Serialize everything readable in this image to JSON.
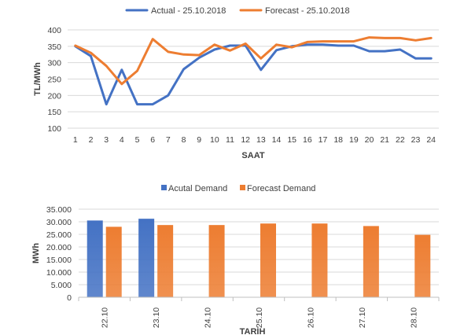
{
  "chart_data": [
    {
      "type": "line",
      "xlabel": "SAAT",
      "ylabel": "TL/MWh",
      "ylim": [
        100,
        400
      ],
      "yticks": [
        100,
        150,
        200,
        250,
        300,
        350,
        400
      ],
      "grid": true,
      "legend_position": "top",
      "x": [
        1,
        2,
        3,
        4,
        5,
        6,
        7,
        8,
        9,
        10,
        11,
        12,
        13,
        14,
        15,
        16,
        17,
        18,
        19,
        20,
        21,
        22,
        23,
        24
      ],
      "series": [
        {
          "name": "Actual - 25.10.2018",
          "color": "#4472c4",
          "values": [
            350,
            320,
            173,
            278,
            173,
            173,
            200,
            280,
            315,
            340,
            352,
            352,
            278,
            338,
            350,
            355,
            355,
            352,
            352,
            335,
            335,
            340,
            313,
            313
          ]
        },
        {
          "name": "Forecast - 25.10.2018",
          "color": "#ed7d31",
          "values": [
            352,
            330,
            290,
            235,
            275,
            372,
            333,
            325,
            323,
            355,
            337,
            358,
            313,
            355,
            347,
            363,
            365,
            365,
            365,
            377,
            375,
            375,
            368,
            375
          ]
        }
      ]
    },
    {
      "type": "bar",
      "xlabel": "TARİH",
      "ylabel": "MWh",
      "ylim": [
        0,
        35000
      ],
      "yticks": [
        "0",
        "5.000",
        "10.000",
        "15.000",
        "20.000",
        "25.000",
        "30.000",
        "35.000"
      ],
      "grid": true,
      "legend_position": "top",
      "categories": [
        "22.10",
        "23.10",
        "24.10",
        "25.10",
        "26.10",
        "27.10",
        "28.10"
      ],
      "series": [
        {
          "name": "Acutal Demand",
          "color": "#4472c4",
          "values": [
            30500,
            31200,
            null,
            null,
            null,
            null,
            null
          ]
        },
        {
          "name": "Forecast Demand",
          "color": "#ed7d31",
          "values": [
            28000,
            28700,
            28700,
            29300,
            29300,
            28300,
            24800
          ]
        }
      ]
    }
  ]
}
